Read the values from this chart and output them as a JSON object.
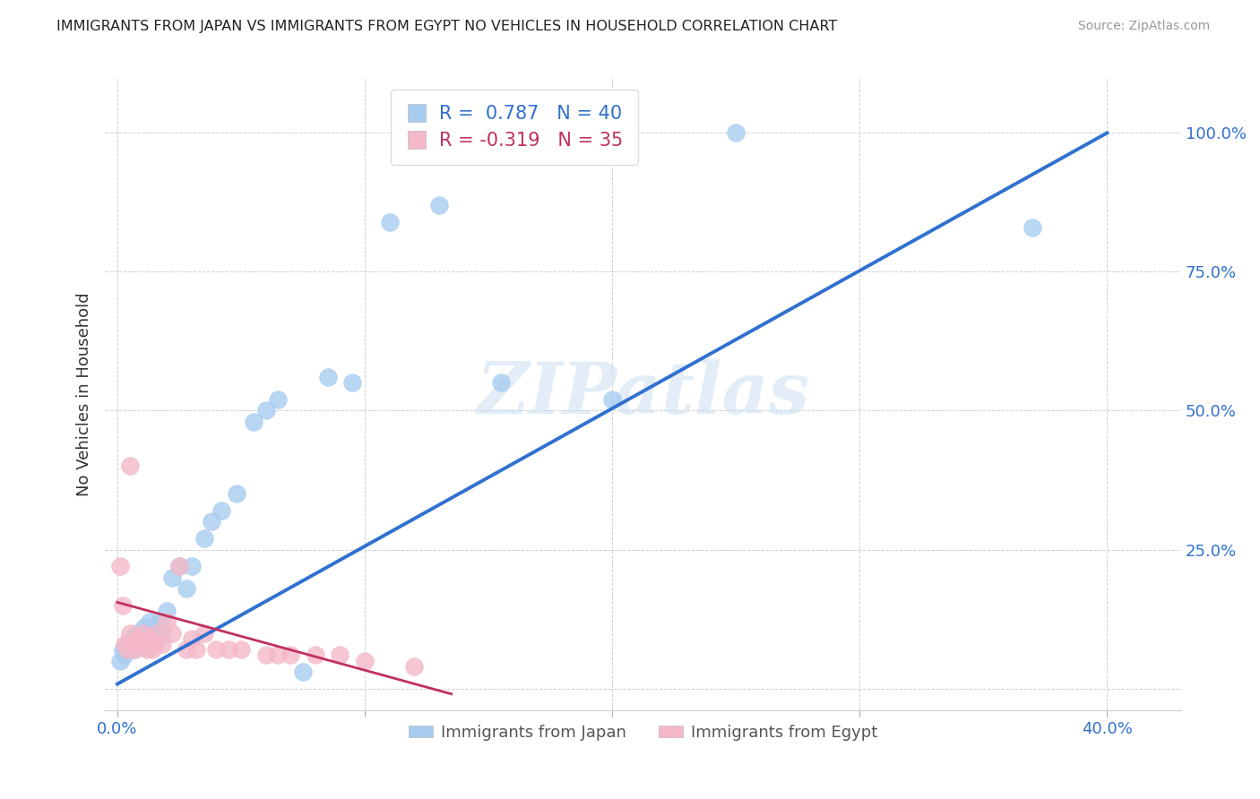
{
  "title": "IMMIGRANTS FROM JAPAN VS IMMIGRANTS FROM EGYPT NO VEHICLES IN HOUSEHOLD CORRELATION CHART",
  "source": "Source: ZipAtlas.com",
  "ylabel": "No Vehicles in Household",
  "xlim": [
    -0.005,
    0.43
  ],
  "ylim": [
    -0.04,
    1.1
  ],
  "japan_color": "#a8ccf0",
  "egypt_color": "#f5b8c8",
  "japan_line_color": "#3070d0",
  "egypt_line_color": "#c03060",
  "japan_R": 0.787,
  "japan_N": 40,
  "egypt_R": -0.319,
  "egypt_N": 35,
  "watermark": "ZIPatlas",
  "legend_label_japan": "Immigrants from Japan",
  "legend_label_egypt": "Immigrants from Egypt",
  "japan_x": [
    0.001,
    0.002,
    0.003,
    0.004,
    0.005,
    0.006,
    0.007,
    0.008,
    0.009,
    0.01,
    0.01,
    0.011,
    0.012,
    0.013,
    0.014,
    0.015,
    0.016,
    0.017,
    0.018,
    0.02,
    0.022,
    0.025,
    0.028,
    0.03,
    0.035,
    0.038,
    0.042,
    0.048,
    0.055,
    0.06,
    0.065,
    0.075,
    0.085,
    0.095,
    0.11,
    0.13,
    0.155,
    0.2,
    0.25,
    0.37
  ],
  "japan_y": [
    0.05,
    0.07,
    0.06,
    0.08,
    0.08,
    0.09,
    0.07,
    0.1,
    0.08,
    0.1,
    0.09,
    0.11,
    0.08,
    0.12,
    0.09,
    0.1,
    0.09,
    0.12,
    0.1,
    0.14,
    0.2,
    0.22,
    0.18,
    0.22,
    0.27,
    0.3,
    0.32,
    0.35,
    0.48,
    0.5,
    0.52,
    0.03,
    0.56,
    0.55,
    0.84,
    0.87,
    0.55,
    0.52,
    1.0,
    0.83
  ],
  "egypt_x": [
    0.001,
    0.002,
    0.003,
    0.004,
    0.005,
    0.005,
    0.006,
    0.007,
    0.008,
    0.009,
    0.01,
    0.011,
    0.012,
    0.013,
    0.014,
    0.015,
    0.016,
    0.018,
    0.02,
    0.022,
    0.025,
    0.028,
    0.03,
    0.032,
    0.035,
    0.04,
    0.045,
    0.05,
    0.06,
    0.065,
    0.07,
    0.08,
    0.09,
    0.1,
    0.12
  ],
  "egypt_y": [
    0.22,
    0.15,
    0.08,
    0.07,
    0.1,
    0.4,
    0.08,
    0.07,
    0.09,
    0.08,
    0.1,
    0.08,
    0.07,
    0.09,
    0.07,
    0.08,
    0.1,
    0.08,
    0.12,
    0.1,
    0.22,
    0.07,
    0.09,
    0.07,
    0.1,
    0.07,
    0.07,
    0.07,
    0.06,
    0.06,
    0.06,
    0.06,
    0.06,
    0.05,
    0.04
  ],
  "japan_line_x": [
    0.0,
    0.4
  ],
  "japan_line_y": [
    0.008,
    1.0
  ],
  "egypt_line_x": [
    0.0,
    0.135
  ],
  "egypt_line_y": [
    0.155,
    -0.01
  ]
}
